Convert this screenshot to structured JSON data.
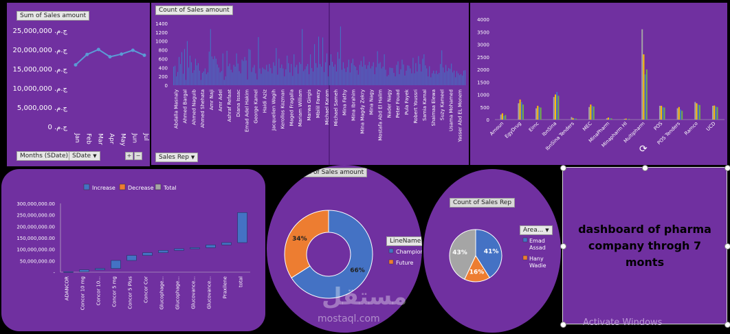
{
  "line_chart": {
    "title": "Sum of Sales amount",
    "y_ticks": [
      "ج.م. 25,000,000",
      "ج.م. 20,000,000",
      "ج.م. 15,000,000",
      "ج.م. 10,000,000",
      "ج.م. 5,000,000",
      "ج.م. 0"
    ],
    "filter1": "Months (SDate)",
    "filter2": "SDate",
    "plus": "+",
    "minus": "−"
  },
  "bar_chart": {
    "title": "Count of Sales amount",
    "filter": "Sales Rep",
    "y_ticks": [
      "1400",
      "1200",
      "1000",
      "800",
      "600",
      "400",
      "200",
      "0"
    ],
    "reps": [
      "Abdalla Masnaly",
      "Ahmed Bargal",
      "Ahmed Naguib",
      "Ahmed Shehata",
      "Amr Naji",
      "Amr Adel",
      "Ashraf Refaat",
      "Diana Issac",
      "Emad Adel Hakim",
      "George Kamel",
      "Haidi Aziz",
      "Jacquelien Wagih",
      "Kerollos Kozman",
      "Maged Fragalla",
      "Mariam William",
      "Marwa Girgis",
      "Mbilil Fawzy",
      "Michael Karam",
      "Michael Sameh",
      "Mina Fathy",
      "Mina Ibrahim",
      "Mina Magdy Zekry",
      "Mina Nagy",
      "Mostafa Abd El Halim",
      "Nader Nagy",
      "Peter Fouad",
      "Pula Fayek",
      "Robert Youssri",
      "Samia Kamal",
      "Shaimaa Elewa",
      "Suzy Kameel",
      "Usama Mohamed",
      "Yasser Abd EL Monem"
    ]
  },
  "cluster_chart": {
    "y_ticks": [
      "4000",
      "3500",
      "3000",
      "2500",
      "2000",
      "1500",
      "1000",
      "500",
      "0"
    ],
    "categories": [
      "Amoun",
      "EgyDrug",
      "Eimc",
      "IbnSina",
      "IbnSina Tenders",
      "MEC",
      "MinaPharm",
      "Minapharm HI",
      "Multipharm",
      "POS",
      "POS Tenders",
      "Ramco",
      "UCD"
    ]
  },
  "waterfall": {
    "legend": [
      "Increase",
      "Decrease",
      "Total"
    ],
    "y_ticks": [
      "300,000,000.00",
      "250,000,000.00",
      "200,000,000.00",
      "150,000,000.00",
      "100,000,000.00",
      "50,000,000.00",
      "-"
    ],
    "categories": [
      "ADANCOR",
      "Concor 10 mg",
      "Concor 10...",
      "Concor 5 mg",
      "Concor 5 Plus",
      "Concor Cor",
      "Glucophage...",
      "Glucophage...",
      "Glucovance...",
      "Glucovance...",
      "Praxilene",
      "total"
    ]
  },
  "donut": {
    "title": "Sum of Sales amount",
    "legend_title": "LineName",
    "legend": [
      "Champion",
      "Future"
    ]
  },
  "pie": {
    "title": "Count of Sales Rep",
    "legend_title": "Area...",
    "legend": [
      "Emad Assad",
      "Hany Wadie"
    ]
  },
  "dashboard_title": "dashboard of pharma company throgh 7 monts",
  "watermark": "Activate Windows",
  "logo_ar": "مستقل",
  "logo_en": "mostaql.com",
  "colors": {
    "panel": "#7030a0",
    "blue": "#4472c4",
    "orange": "#ed7d31",
    "gray": "#a5a5a5"
  },
  "chart_data": [
    {
      "type": "line",
      "title": "Sum of Sales amount",
      "categories": [
        "Jan",
        "Feb",
        "Mar",
        "Apr",
        "May",
        "Jun",
        "Jul"
      ],
      "values": [
        16000000,
        18700000,
        20000000,
        18100000,
        18800000,
        19800000,
        18500000
      ],
      "ylim": [
        0,
        25000000
      ]
    },
    {
      "type": "bar",
      "title": "Count of Sales amount",
      "xlabel": "Sales Rep",
      "ylim": [
        0,
        1400
      ],
      "values": [
        420,
        440,
        200,
        300,
        640,
        480,
        750,
        260,
        820,
        120,
        1000,
        400,
        670,
        520,
        280,
        340,
        600,
        450,
        500,
        330,
        120,
        280,
        310,
        380,
        250,
        290,
        760,
        1270,
        650,
        590,
        660,
        600,
        470,
        400,
        290,
        320,
        720,
        120,
        200,
        780,
        430,
        490,
        350,
        290,
        460,
        420,
        720,
        490,
        320,
        270,
        580,
        550,
        640,
        560,
        130,
        820,
        800,
        300,
        400,
        460,
        270,
        130,
        1090,
        380,
        260,
        400,
        370,
        350,
        460,
        310,
        480,
        390,
        270,
        520,
        440,
        840,
        240,
        600,
        390,
        470,
        380,
        200,
        360,
        670,
        500,
        290,
        480,
        210,
        700,
        410,
        460,
        260,
        520,
        480,
        1270,
        320,
        360,
        430,
        480,
        250,
        700,
        390,
        310,
        930,
        500,
        400,
        1100,
        480,
        420,
        1080,
        300,
        520,
        720,
        200,
        450,
        700,
        530,
        420,
        470,
        310,
        750,
        600,
        1330,
        350,
        520,
        380,
        300,
        410,
        580,
        290,
        500,
        600,
        450,
        420,
        340,
        240,
        460,
        550,
        420,
        650,
        460,
        370,
        450,
        530,
        380,
        430,
        520,
        250,
        410,
        770,
        490,
        520,
        380,
        420,
        700,
        350,
        200,
        230,
        400,
        390,
        390,
        280,
        200,
        460,
        540,
        250,
        360,
        580,
        470,
        220,
        330,
        450,
        440,
        380,
        270,
        620,
        270,
        500,
        310,
        660,
        480,
        310,
        600,
        700,
        450,
        380,
        200,
        430,
        180,
        270,
        330,
        260,
        330,
        250,
        280,
        480,
        790,
        400,
        290,
        460,
        320,
        390,
        370,
        490,
        290,
        330,
        180,
        320,
        270,
        230,
        250,
        220,
        330,
        340
      ]
    },
    {
      "type": "bar",
      "categories": [
        "Amoun",
        "EgyDrug",
        "Eimc",
        "IbnSina",
        "IbnSina Tenders",
        "MEC",
        "MinaPharm",
        "Minapharm HI",
        "Multipharm",
        "POS",
        "POS Tenders",
        "Ramco",
        "UCD"
      ],
      "ylim": [
        0,
        4000
      ],
      "series": [
        {
          "values": [
            200,
            650,
            450,
            900,
            100,
            500,
            50,
            30,
            3600,
            550,
            450,
            700,
            550
          ]
        },
        {
          "values": [
            250,
            800,
            550,
            1000,
            60,
            600,
            80,
            40,
            2600,
            550,
            500,
            650,
            560
          ]
        },
        {
          "values": [
            150,
            700,
            500,
            1100,
            50,
            550,
            60,
            20,
            1800,
            500,
            400,
            600,
            520
          ]
        },
        {
          "values": [
            180,
            600,
            480,
            950,
            40,
            520,
            50,
            30,
            2000,
            480,
            350,
            580,
            500
          ]
        }
      ]
    },
    {
      "type": "bar",
      "title": "",
      "categories": [
        "ADANCOR",
        "Concor 10 mg",
        "Concor 10...",
        "Concor 5 mg",
        "Concor 5 Plus",
        "Concor Cor",
        "Glucophage...",
        "Glucophage...",
        "Glucovance...",
        "Glucovance...",
        "Praxilene",
        "total"
      ],
      "values": [
        2000000,
        8000000,
        6000000,
        35000000,
        22000000,
        12000000,
        10000000,
        7000000,
        5000000,
        12000000,
        10000000,
        260000000
      ],
      "ylim": [
        0,
        300000000
      ]
    },
    {
      "type": "pie",
      "title": "Sum of Sales amount",
      "categories": [
        "Champion",
        "Future"
      ],
      "values": [
        66,
        34
      ]
    },
    {
      "type": "pie",
      "title": "Count of Sales Rep",
      "categories": [
        "Emad Assad",
        "Hany Wadie",
        ""
      ],
      "values": [
        41,
        16,
        43
      ]
    }
  ]
}
